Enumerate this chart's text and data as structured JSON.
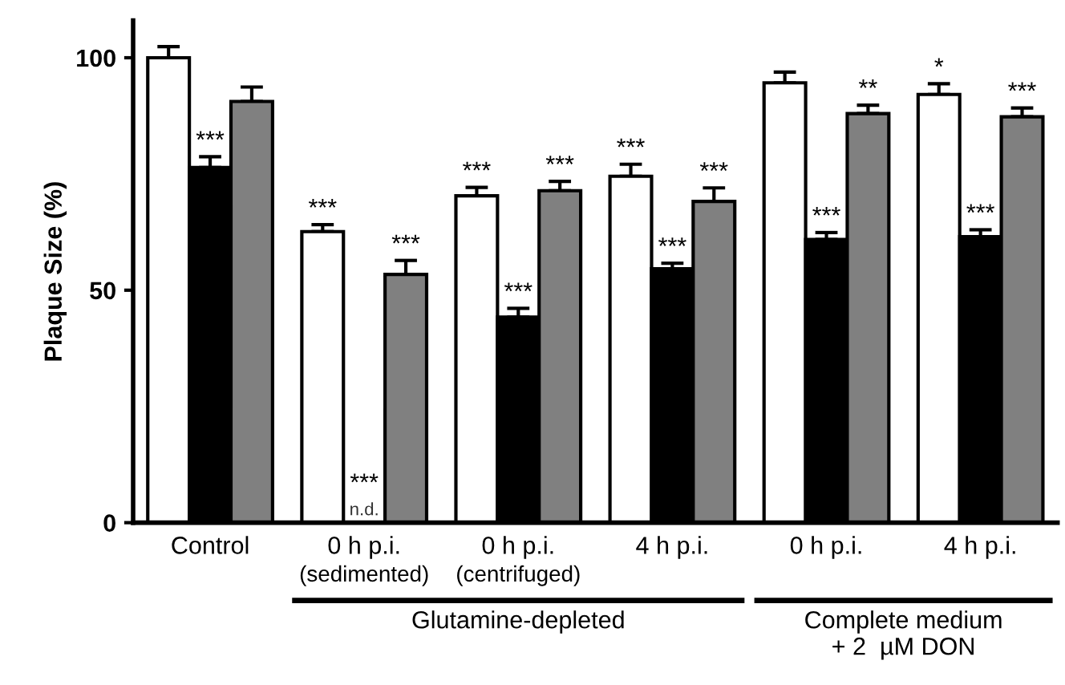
{
  "chart_data": {
    "type": "bar",
    "ylabel": "Plaque Size (%)",
    "categories": [
      "Control",
      "0 h p.i.\n(sedimented)",
      "0 h p.i.\n(centrifuged)",
      "4 h p.i.",
      "0 h p.i.",
      "4 h p.i."
    ],
    "series": [
      {
        "color": "#ffffff",
        "values": [
          100,
          62.6,
          70.3,
          74.5,
          94.6,
          92.1
        ],
        "errors": [
          2.4,
          1.5,
          1.8,
          2.6,
          2.3,
          2.3
        ],
        "value_labels": [
          null,
          "***",
          "***",
          "***",
          null,
          "*"
        ]
      },
      {
        "color": "#000000",
        "values": [
          76.4,
          null,
          44.2,
          54.6,
          60.9,
          61.5
        ],
        "errors": [
          2.3,
          null,
          1.9,
          1.2,
          1.5,
          1.5
        ],
        "value_labels": [
          "***",
          "***\nn.d.",
          "***",
          "***",
          "***",
          "***"
        ]
      },
      {
        "color": "#808080",
        "values": [
          90.6,
          53.4,
          71.4,
          69.1,
          88,
          87.3
        ],
        "errors": [
          3.1,
          3,
          2,
          2.9,
          1.8,
          1.9
        ],
        "value_labels": [
          null,
          "***",
          "***",
          "***",
          "**",
          "***"
        ]
      }
    ],
    "ylim": [
      0,
      108
    ],
    "yticks": [
      0,
      50,
      100
    ],
    "grid": false,
    "legend": false,
    "annotations": [
      "Glutamine-depleted",
      "Complete medium\n+ 2  µM DON"
    ]
  }
}
